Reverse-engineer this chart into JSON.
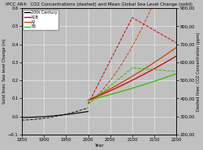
{
  "title": "IPCC AR4:  CO2 Concentrations (dashed) and Mean Global Sea Level Change (solid)",
  "xlabel": "Year",
  "ylabel_left": "Solid lines: Sea level Change (m)",
  "ylabel_right": "Dashed lines: CO2 Concentration (ppm)",
  "xlim": [
    1850,
    2200
  ],
  "ylim_left": [
    -0.1,
    0.6
  ],
  "ylim_right": [
    200,
    900
  ],
  "yticks_left": [
    -0.1,
    0,
    0.1,
    0.2,
    0.3,
    0.4,
    0.5,
    0.6
  ],
  "yticks_right": [
    200,
    300,
    400,
    500,
    600,
    700,
    800,
    900
  ],
  "xticks": [
    1850,
    1900,
    1950,
    2000,
    2050,
    2100,
    2150,
    2200
  ],
  "legend_entries": [
    "20th Century",
    "A1B",
    "A2",
    "B1"
  ],
  "legend_colors": [
    "#000000",
    "#cc0000",
    "#cc4400",
    "#33bb00"
  ],
  "bg_color": "#c0c0c0",
  "grid_color": "#e8e8e8"
}
